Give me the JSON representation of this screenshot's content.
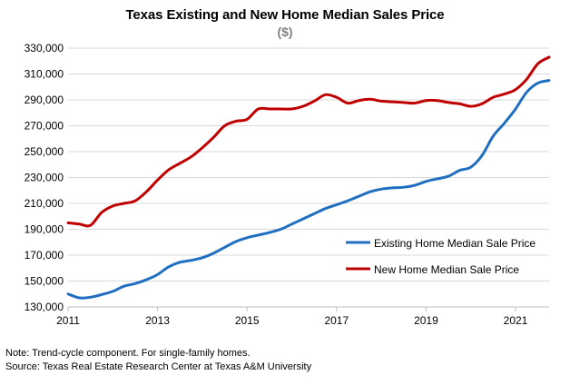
{
  "chart_data": {
    "type": "line",
    "title": "Texas Existing and New Home Median Sales Price",
    "subtitle": "($)",
    "xlabel": "",
    "ylabel": "",
    "xlim": [
      2011,
      2021.75
    ],
    "ylim": [
      130000,
      330000
    ],
    "x_ticks": [
      2011,
      2013,
      2015,
      2017,
      2019,
      2021
    ],
    "y_ticks": [
      130000,
      150000,
      170000,
      190000,
      210000,
      230000,
      250000,
      270000,
      290000,
      310000,
      330000
    ],
    "y_tick_labels": [
      "130,000",
      "150,000",
      "170,000",
      "190,000",
      "210,000",
      "230,000",
      "250,000",
      "270,000",
      "290,000",
      "310,000",
      "330,000"
    ],
    "grid": true,
    "legend_position": "center-right",
    "series": [
      {
        "name": "Existing Home Median Sale Price",
        "color": "#1f6ebf",
        "x": [
          2011.0,
          2011.25,
          2011.5,
          2011.75,
          2012.0,
          2012.25,
          2012.5,
          2012.75,
          2013.0,
          2013.25,
          2013.5,
          2013.75,
          2014.0,
          2014.25,
          2014.5,
          2014.75,
          2015.0,
          2015.25,
          2015.5,
          2015.75,
          2016.0,
          2016.25,
          2016.5,
          2016.75,
          2017.0,
          2017.25,
          2017.5,
          2017.75,
          2018.0,
          2018.25,
          2018.5,
          2018.75,
          2019.0,
          2019.25,
          2019.5,
          2019.75,
          2020.0,
          2020.25,
          2020.5,
          2020.75,
          2021.0,
          2021.25,
          2021.5,
          2021.75
        ],
        "values": [
          140000,
          137000,
          137500,
          139500,
          142000,
          146000,
          148000,
          151000,
          155000,
          161000,
          164500,
          166000,
          168000,
          171500,
          176000,
          180500,
          183500,
          185500,
          187500,
          190000,
          194000,
          198000,
          202000,
          206000,
          209000,
          212000,
          215500,
          219000,
          221000,
          222000,
          222500,
          224000,
          227000,
          229000,
          231000,
          235500,
          238000,
          247000,
          262000,
          272000,
          283000,
          296000,
          303000,
          305000
        ]
      },
      {
        "name": "New Home Median Sale Price",
        "color": "#c00000",
        "x": [
          2011.0,
          2011.25,
          2011.5,
          2011.75,
          2012.0,
          2012.25,
          2012.5,
          2012.75,
          2013.0,
          2013.25,
          2013.5,
          2013.75,
          2014.0,
          2014.25,
          2014.5,
          2014.75,
          2015.0,
          2015.25,
          2015.5,
          2015.75,
          2016.0,
          2016.25,
          2016.5,
          2016.75,
          2017.0,
          2017.25,
          2017.5,
          2017.75,
          2018.0,
          2018.25,
          2018.5,
          2018.75,
          2019.0,
          2019.25,
          2019.5,
          2019.75,
          2020.0,
          2020.25,
          2020.5,
          2020.75,
          2021.0,
          2021.25,
          2021.5,
          2021.75
        ],
        "values": [
          195000,
          194000,
          193000,
          203000,
          208000,
          210000,
          212000,
          219000,
          228000,
          236000,
          241000,
          246000,
          253000,
          261000,
          270000,
          273500,
          275000,
          283000,
          283000,
          283000,
          283000,
          285000,
          289000,
          294000,
          292000,
          287500,
          289500,
          290500,
          289000,
          288500,
          288000,
          287500,
          289500,
          289500,
          288000,
          287000,
          285000,
          287000,
          292000,
          294500,
          298000,
          306000,
          318000,
          323000
        ]
      }
    ]
  },
  "notes": {
    "line1": "Note: Trend-cycle component. For single-family homes.",
    "line2": "Source: Texas Real Estate Research Center at Texas A&M University"
  }
}
